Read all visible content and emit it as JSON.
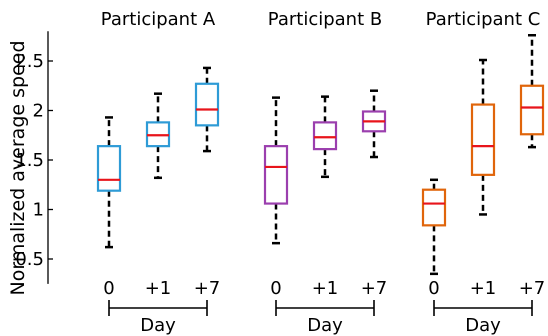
{
  "chart_data": {
    "type": "boxplot",
    "ylabel": "Normalized average speed",
    "ylim": [
      0.35,
      2.8
    ],
    "y_ticks": [
      "0.5",
      "1",
      "1.5",
      "2",
      "2.5"
    ],
    "x_tick_labels": [
      "0",
      "+1",
      "+7"
    ],
    "xlabel": "Day",
    "median_color": "#e8141b",
    "panels": [
      {
        "title": "Participant A",
        "color": "#2e9bd6",
        "boxes": [
          {
            "day": "0",
            "whisker_low": 0.62,
            "q1": 1.19,
            "median": 1.3,
            "q3": 1.64,
            "whisker_high": 1.93
          },
          {
            "day": "+1",
            "whisker_low": 1.32,
            "q1": 1.64,
            "median": 1.75,
            "q3": 1.88,
            "whisker_high": 2.17
          },
          {
            "day": "+7",
            "whisker_low": 1.59,
            "q1": 1.85,
            "median": 2.01,
            "q3": 2.27,
            "whisker_high": 2.43
          }
        ]
      },
      {
        "title": "Participant B",
        "color": "#9b3fae",
        "boxes": [
          {
            "day": "0",
            "whisker_low": 0.66,
            "q1": 1.06,
            "median": 1.43,
            "q3": 1.64,
            "whisker_high": 2.13
          },
          {
            "day": "+1",
            "whisker_low": 1.33,
            "q1": 1.61,
            "median": 1.73,
            "q3": 1.88,
            "whisker_high": 2.14
          },
          {
            "day": "+7",
            "whisker_low": 1.53,
            "q1": 1.79,
            "median": 1.89,
            "q3": 1.99,
            "whisker_high": 2.2
          }
        ]
      },
      {
        "title": "Participant C",
        "color": "#e0650b",
        "boxes": [
          {
            "day": "0",
            "whisker_low": 0.35,
            "q1": 0.84,
            "median": 1.06,
            "q3": 1.2,
            "whisker_high": 1.3
          },
          {
            "day": "+1",
            "whisker_low": 0.95,
            "q1": 1.35,
            "median": 1.64,
            "q3": 2.06,
            "whisker_high": 2.51
          },
          {
            "day": "+7",
            "whisker_low": 1.63,
            "q1": 1.76,
            "median": 2.03,
            "q3": 2.25,
            "whisker_high": 2.76
          }
        ]
      }
    ]
  }
}
